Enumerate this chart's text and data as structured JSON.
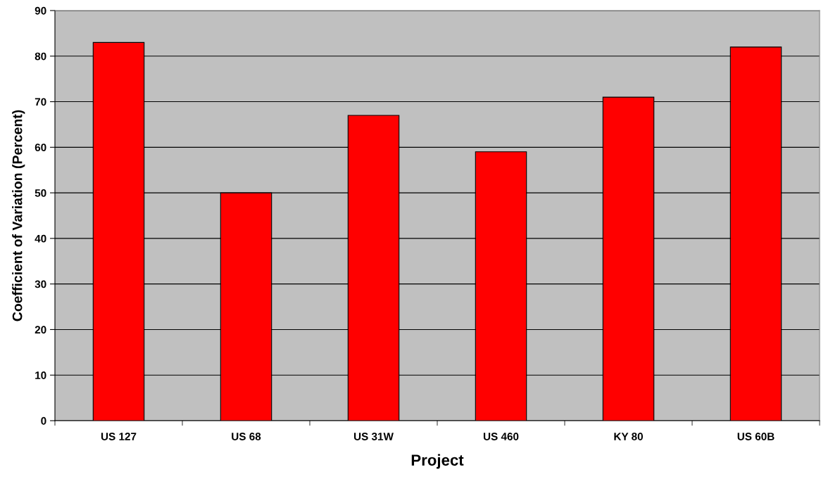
{
  "chart_data": {
    "type": "bar",
    "xlabel": "Project",
    "ylabel": "Coefficient of Variation (Percent)",
    "categories": [
      "US 127",
      "US 68",
      "US 31W",
      "US 460",
      "KY 80",
      "US 60B"
    ],
    "values": [
      83,
      50,
      67,
      59,
      71,
      82
    ],
    "color": "#ff0000",
    "ylim": [
      0,
      90
    ],
    "yticks": [
      0,
      10,
      20,
      30,
      40,
      50,
      60,
      70,
      80,
      90
    ],
    "grid": "y",
    "legend": false
  }
}
